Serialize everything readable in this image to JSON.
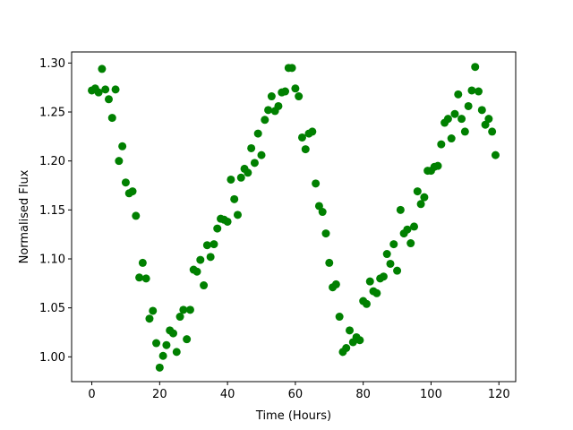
{
  "chart_data": {
    "type": "scatter",
    "xlabel": "Time (Hours)",
    "ylabel": "Normalised Flux",
    "color": "#008000",
    "x": [
      0,
      1,
      2,
      3,
      4,
      5,
      6,
      7,
      8,
      9,
      10,
      11,
      12,
      13,
      14,
      15,
      16,
      17,
      18,
      19,
      20,
      21,
      22,
      23,
      24,
      25,
      26,
      27,
      28,
      29,
      30,
      31,
      32,
      33,
      34,
      35,
      36,
      37,
      38,
      39,
      40,
      41,
      42,
      43,
      44,
      45,
      46,
      47,
      48,
      49,
      50,
      51,
      52,
      53,
      54,
      55,
      56,
      57,
      58,
      59,
      60,
      61,
      62,
      63,
      64,
      65,
      66,
      67,
      68,
      69,
      70,
      71,
      72,
      73,
      74,
      75,
      76,
      77,
      78,
      79,
      80,
      81,
      82,
      83,
      84,
      85,
      86,
      87,
      88,
      89,
      90,
      91,
      92,
      93,
      94,
      95,
      96,
      97,
      98,
      99,
      100,
      101,
      102,
      103,
      104,
      105,
      106,
      107,
      108,
      109,
      110,
      111,
      112,
      113,
      114,
      115,
      116,
      117,
      118,
      119
    ],
    "values": [
      1.272,
      1.274,
      1.27,
      1.294,
      1.273,
      1.263,
      1.244,
      1.273,
      1.2,
      1.215,
      1.178,
      1.167,
      1.169,
      1.144,
      1.081,
      1.096,
      1.08,
      1.039,
      1.047,
      1.014,
      0.989,
      1.001,
      1.012,
      1.027,
      1.024,
      1.005,
      1.041,
      1.048,
      1.018,
      1.048,
      1.089,
      1.087,
      1.099,
      1.073,
      1.114,
      1.102,
      1.115,
      1.131,
      1.141,
      1.14,
      1.138,
      1.181,
      1.161,
      1.145,
      1.183,
      1.192,
      1.188,
      1.213,
      1.198,
      1.228,
      1.206,
      1.242,
      1.252,
      1.266,
      1.251,
      1.256,
      1.27,
      1.271,
      1.295,
      1.295,
      1.274,
      1.266,
      1.224,
      1.212,
      1.228,
      1.23,
      1.177,
      1.154,
      1.148,
      1.126,
      1.096,
      1.071,
      1.074,
      1.041,
      1.005,
      1.009,
      1.027,
      1.015,
      1.02,
      1.017,
      1.057,
      1.054,
      1.077,
      1.067,
      1.065,
      1.08,
      1.082,
      1.105,
      1.095,
      1.115,
      1.088,
      1.15,
      1.126,
      1.13,
      1.116,
      1.133,
      1.169,
      1.156,
      1.163,
      1.19,
      1.19,
      1.194,
      1.195,
      1.217,
      1.239,
      1.243,
      1.223,
      1.248,
      1.268,
      1.243,
      1.23,
      1.256,
      1.272,
      1.296,
      1.271,
      1.252,
      1.237,
      1.243,
      1.23,
      1.206
    ],
    "xlim": [
      -5.95,
      124.95
    ],
    "xticks": [
      0,
      20,
      40,
      60,
      80,
      100,
      120
    ],
    "ylim": [
      0.9747,
      1.3113
    ],
    "yticks": [
      {
        "value": 1.0,
        "label": "1.00"
      },
      1.05,
      {
        "value": 1.1,
        "label": "1.10"
      },
      1.15,
      {
        "value": 1.2,
        "label": "1.20"
      },
      1.25,
      {
        "value": 1.3,
        "label": "1.30"
      }
    ]
  }
}
